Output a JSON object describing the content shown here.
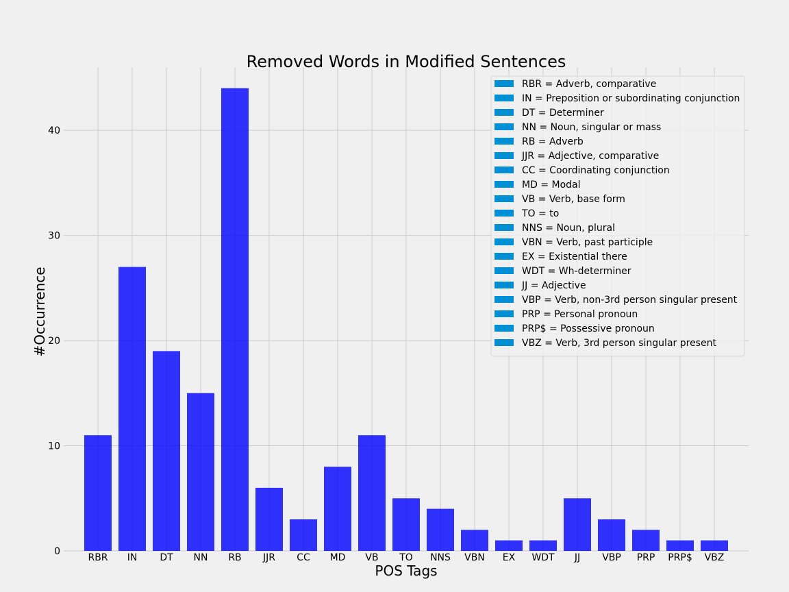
{
  "chart_data": {
    "type": "bar",
    "title": "Removed Words in Modified Sentences",
    "xlabel": "POS Tags",
    "ylabel": "#Occurrence",
    "categories": [
      "RBR",
      "IN",
      "DT",
      "NN",
      "RB",
      "JJR",
      "CC",
      "MD",
      "VB",
      "TO",
      "NNS",
      "VBN",
      "EX",
      "WDT",
      "JJ",
      "VBP",
      "PRP",
      "PRP$",
      "VBZ"
    ],
    "values": [
      11,
      27,
      19,
      15,
      44,
      6,
      3,
      8,
      11,
      5,
      4,
      2,
      1,
      1,
      5,
      3,
      2,
      1,
      1
    ],
    "ylim": [
      0,
      46
    ],
    "yticks": [
      0,
      10,
      20,
      30,
      40
    ],
    "grid": true,
    "legend_position": "top-right",
    "legend": [
      "RBR = Adverb, comparative",
      "IN = Preposition or subordinating conjunction",
      "DT = Determiner",
      "NN = Noun, singular or mass",
      "RB = Adverb",
      "JJR = Adjective, comparative",
      "CC = Coordinating conjunction",
      "MD = Modal",
      "VB = Verb, base form",
      "TO = to",
      "NNS = Noun, plural",
      "VBN = Verb, past participle",
      "EX = Existential there",
      "WDT = Wh-determiner",
      "JJ = Adjective",
      "VBP = Verb, non-3rd person singular present",
      "PRP = Personal pronoun",
      "PRP$ = Possessive pronoun",
      "VBZ = Verb, 3rd person singular present"
    ],
    "bar_color": "#0000ff",
    "legend_swatch_color": "#008fd5",
    "background_color": "#f0f0f0",
    "grid_color": "#cbcbcb"
  }
}
